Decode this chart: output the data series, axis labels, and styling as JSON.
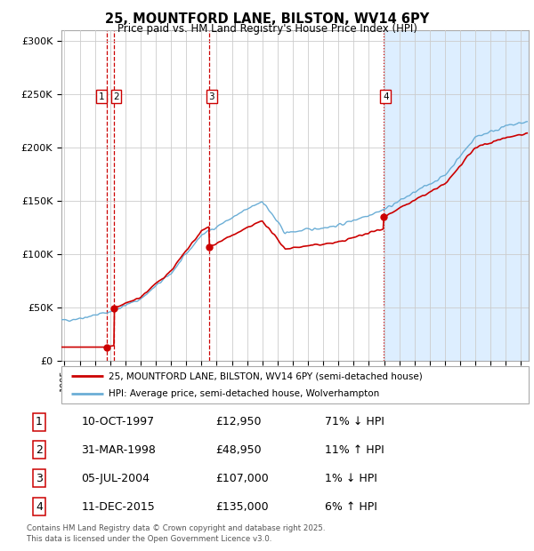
{
  "title_line1": "25, MOUNTFORD LANE, BILSTON, WV14 6PY",
  "title_line2": "Price paid vs. HM Land Registry's House Price Index (HPI)",
  "ylabel_ticks": [
    "£0",
    "£50K",
    "£100K",
    "£150K",
    "£200K",
    "£250K",
    "£300K"
  ],
  "ytick_values": [
    0,
    50000,
    100000,
    150000,
    200000,
    250000,
    300000
  ],
  "ylim": [
    0,
    310000
  ],
  "xlim_start": 1994.8,
  "xlim_end": 2025.5,
  "purchases": [
    {
      "label": "1",
      "date": "10-OCT-1997",
      "year": 1997.78,
      "price": 12950,
      "pct": "71%",
      "dir": "↓"
    },
    {
      "label": "2",
      "date": "31-MAR-1998",
      "year": 1998.25,
      "price": 48950,
      "pct": "11%",
      "dir": "↑"
    },
    {
      "label": "3",
      "date": "05-JUL-2004",
      "year": 2004.51,
      "price": 107000,
      "pct": "1%",
      "dir": "↓"
    },
    {
      "label": "4",
      "date": "11-DEC-2015",
      "year": 2015.95,
      "price": 135000,
      "pct": "6%",
      "dir": "↑"
    }
  ],
  "hpi_color": "#6baed6",
  "hpi_fill_color": "#ddeeff",
  "price_color": "#cc0000",
  "vline_color": "#cc0000",
  "bg_before_last": "#ffffff",
  "bg_after_last": "#ddeeff",
  "legend_label_price": "25, MOUNTFORD LANE, BILSTON, WV14 6PY (semi-detached house)",
  "legend_label_hpi": "HPI: Average price, semi-detached house, Wolverhampton",
  "footnote": "Contains HM Land Registry data © Crown copyright and database right 2025.\nThis data is licensed under the Open Government Licence v3.0.",
  "table_rows": [
    [
      "1",
      "10-OCT-1997",
      "£12,950",
      "71% ↓ HPI"
    ],
    [
      "2",
      "31-MAR-1998",
      "£48,950",
      "11% ↑ HPI"
    ],
    [
      "3",
      "05-JUL-2004",
      "£107,000",
      "1% ↓ HPI"
    ],
    [
      "4",
      "11-DEC-2015",
      "£135,000",
      "6% ↑ HPI"
    ]
  ]
}
